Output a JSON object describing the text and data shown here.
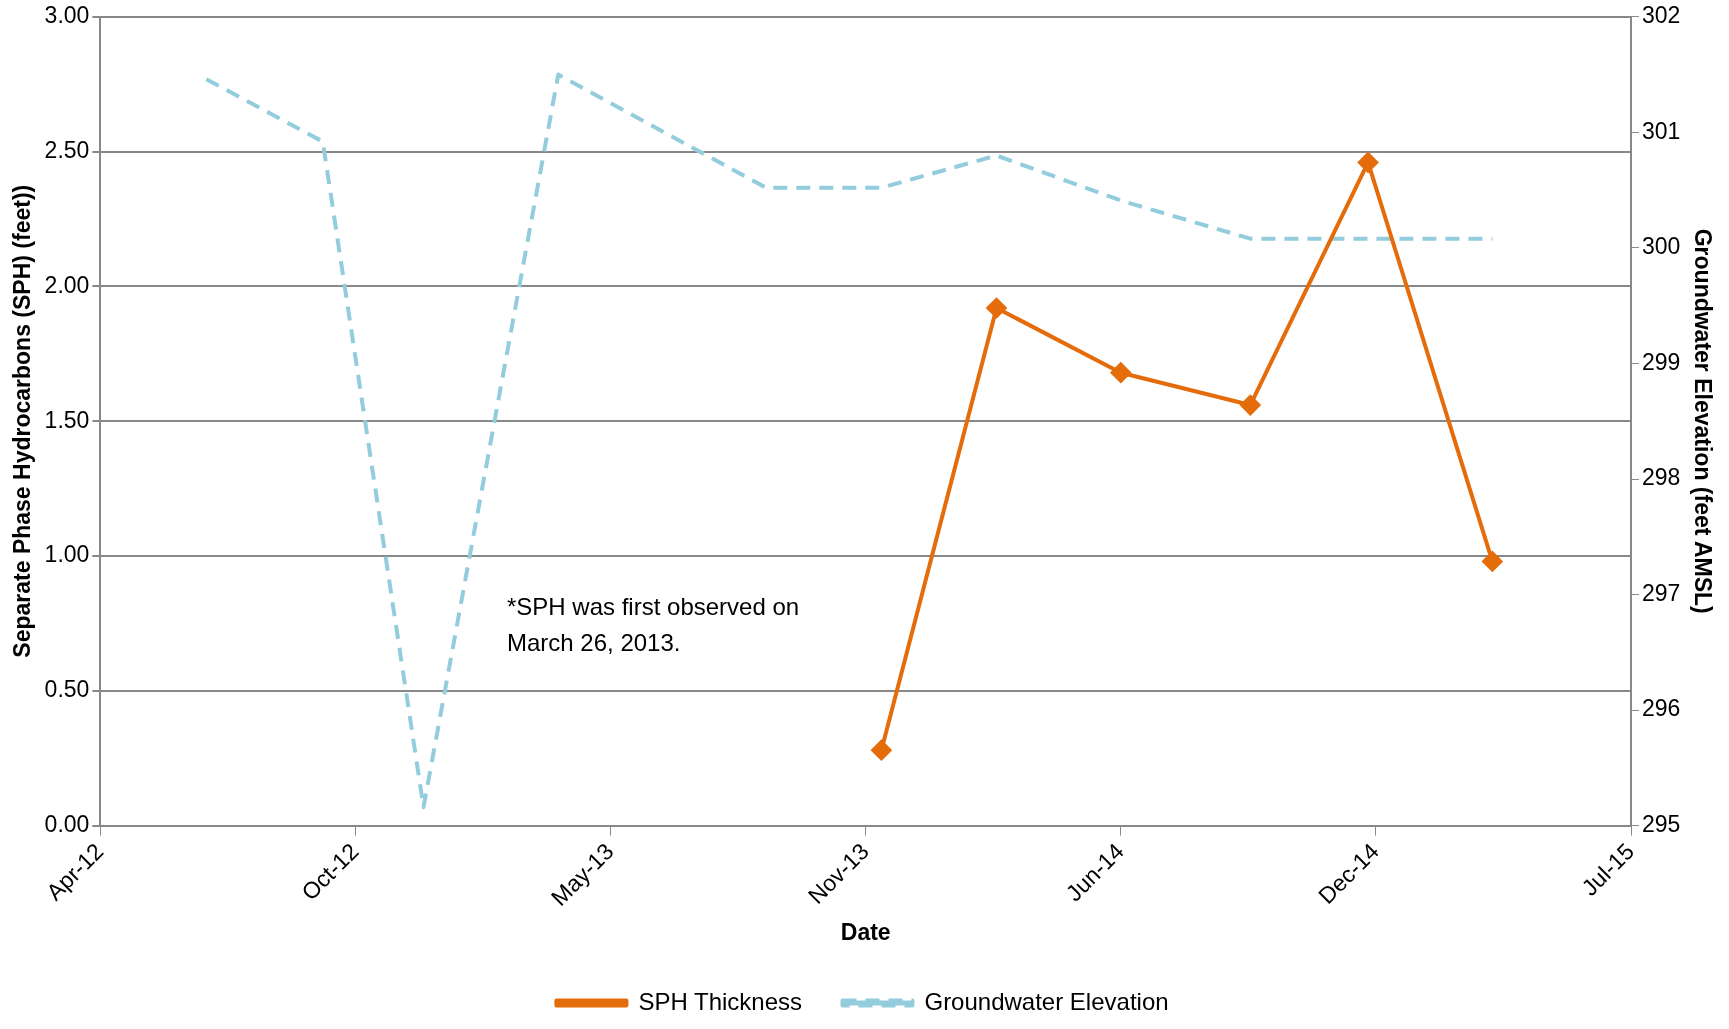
{
  "chart_data": {
    "type": "line",
    "xlabel": "Date",
    "ylabel": "Separate Phase Hydrocarbons (SPH) (feet))",
    "y2label": "Groundwater Elevation (feet AMSL)",
    "series": [
      {
        "name": "SPH Thickness",
        "color": "#e46c0a",
        "marker": "diamond",
        "line_style": "solid",
        "x": [
          "2013-12-07",
          "2014-03-05",
          "2014-06-08",
          "2014-09-15",
          "2014-12-14",
          "2015-03-19"
        ],
        "values": [
          0.28,
          1.92,
          1.68,
          1.56,
          2.46,
          0.98
        ]
      },
      {
        "name": "Groundwater Elevation",
        "color": "#93cddd",
        "marker": "none",
        "line_style": "dashed",
        "axis": "y2",
        "x": [
          "2012-07-09",
          "2012-10-06",
          "2012-12-22",
          "2013-04-04",
          "2013-09-10",
          "2013-12-07",
          "2014-03-05",
          "2014-06-08",
          "2014-09-15",
          "2014-12-14",
          "2015-03-19"
        ],
        "values": [
          301.46,
          300.92,
          295.16,
          301.5,
          300.52,
          300.52,
          300.8,
          300.41,
          300.08,
          300.08,
          300.08
        ]
      }
    ],
    "xlim": [
      "2012-04-19",
      "2015-07-03"
    ],
    "xticks": [
      {
        "value": "2012-04-19",
        "label": "Apr-12"
      },
      {
        "value": "2012-10-31",
        "label": "Oct-12"
      },
      {
        "value": "2013-05-14",
        "label": "May-13"
      },
      {
        "value": "2013-11-25",
        "label": "Nov-13"
      },
      {
        "value": "2014-06-08",
        "label": "Jun-14"
      },
      {
        "value": "2014-12-20",
        "label": "Dec-14"
      },
      {
        "value": "2015-07-03",
        "label": "Jul-15"
      }
    ],
    "ylim": [
      0,
      3
    ],
    "yticks": [
      {
        "value": 0,
        "label": "0.00"
      },
      {
        "value": 0.5,
        "label": "0.50"
      },
      {
        "value": 1,
        "label": "1.00"
      },
      {
        "value": 1.5,
        "label": "1.50"
      },
      {
        "value": 2,
        "label": "2.00"
      },
      {
        "value": 2.5,
        "label": "2.50"
      },
      {
        "value": 3,
        "label": "3.00"
      }
    ],
    "y2lim": [
      295,
      302
    ],
    "y2ticks": [
      295,
      296,
      297,
      298,
      299,
      300,
      301,
      302
    ],
    "grid": "y",
    "legend": "bottom",
    "annotations": [
      "*SPH was first observed on March 26, 2013."
    ]
  }
}
